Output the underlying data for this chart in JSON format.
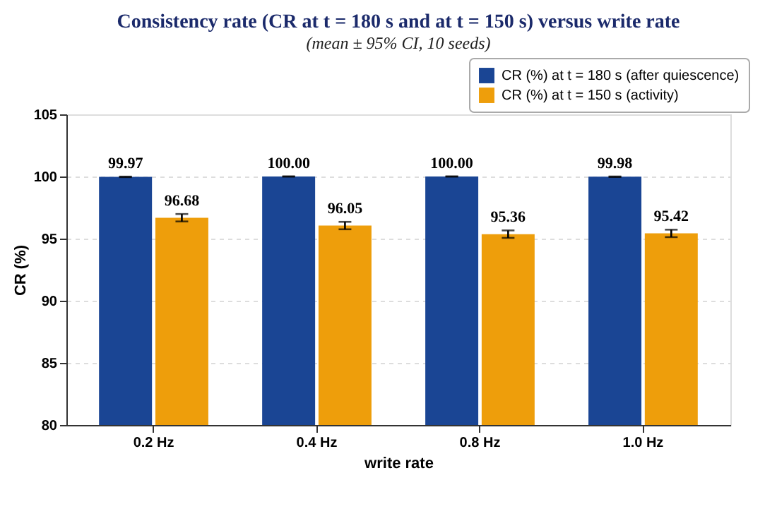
{
  "chart_data": {
    "type": "bar",
    "title": "Consistency rate (CR at t = 180 s and at t = 150 s) versus write rate",
    "subtitle": "(mean ± 95% CI, 10 seeds)",
    "xlabel": "write rate",
    "ylabel": "CR (%)",
    "categories": [
      "0.2 Hz",
      "0.4 Hz",
      "0.8 Hz",
      "1.0 Hz"
    ],
    "series": [
      {
        "name": "CR (%) at t = 180 s (after quiescence)",
        "color": "#1a4594",
        "values": [
          99.97,
          100.0,
          100.0,
          99.98
        ],
        "value_labels": [
          "99.97",
          "100.00",
          "100.00",
          "99.98"
        ],
        "errors": [
          0.02,
          0.01,
          0.01,
          0.02
        ]
      },
      {
        "name": "CR (%) at t = 150 s (activity)",
        "color": "#ee9e0b",
        "values": [
          96.68,
          96.05,
          95.36,
          95.42
        ],
        "value_labels": [
          "96.68",
          "96.05",
          "95.36",
          "95.42"
        ],
        "errors": [
          0.3,
          0.3,
          0.3,
          0.3
        ]
      }
    ],
    "ylim": [
      80,
      105
    ],
    "yticks": [
      80,
      85,
      90,
      95,
      100,
      105
    ],
    "grid": "y",
    "legend": "top right"
  }
}
